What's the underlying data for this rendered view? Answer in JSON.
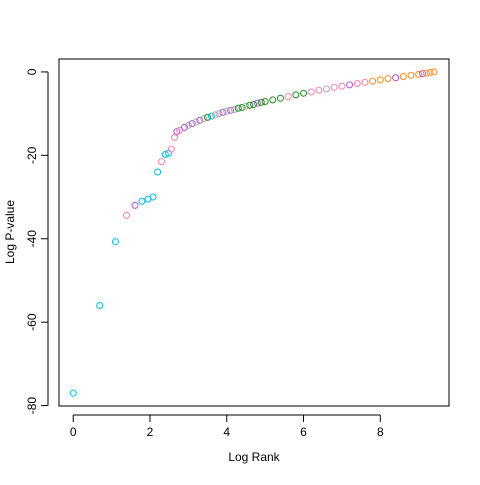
{
  "chart_data": {
    "type": "scatter",
    "x_label": "Log Rank",
    "y_label": "Log P-value",
    "xlim": [
      -0.37,
      9.79
    ],
    "ylim": [
      -80.1,
      3.1
    ],
    "xticks": [
      0,
      2,
      4,
      6,
      8
    ],
    "yticks": [
      0,
      -20,
      -40,
      -60,
      -80
    ],
    "series": [
      {
        "x": [
          0,
          0.69,
          1.1,
          1.39,
          1.61,
          1.79,
          1.95,
          2.08,
          2.2,
          2.3,
          2.4,
          2.48,
          2.56,
          2.64,
          2.7,
          2.77,
          2.9,
          3.0,
          3.1,
          3.2,
          3.3,
          3.4,
          3.5,
          3.6,
          3.7,
          3.8,
          3.9,
          4.0,
          4.1,
          4.2,
          4.3,
          4.4,
          4.5,
          4.6,
          4.7,
          4.8,
          4.9,
          5.0,
          5.2,
          5.4,
          5.6,
          5.8,
          6.0,
          6.2,
          6.4,
          6.6,
          6.8,
          7.0,
          7.2,
          7.4,
          7.6,
          7.8,
          8.0,
          8.2,
          8.4,
          8.6,
          8.8,
          9.0,
          9.1,
          9.2,
          9.3,
          9.4
        ],
        "values": [
          -77,
          -56,
          -40.7,
          -34.4,
          -32,
          -31,
          -30.5,
          -30,
          -24,
          -21.5,
          -19.8,
          -19.5,
          -18.5,
          -15.7,
          -14.3,
          -14,
          -13.3,
          -12.8,
          -12.4,
          -12.0,
          -11.6,
          -11.2,
          -10.9,
          -10.6,
          -10.3,
          -10.0,
          -9.7,
          -9.4,
          -9.2,
          -9.0,
          -8.7,
          -8.5,
          -8.2,
          -8.0,
          -7.8,
          -7.5,
          -7.3,
          -7.1,
          -6.7,
          -6.3,
          -5.9,
          -5.5,
          -5.1,
          -4.8,
          -4.4,
          -4.1,
          -3.7,
          -3.4,
          -3.1,
          -2.8,
          -2.5,
          -2.2,
          -1.9,
          -1.6,
          -1.4,
          -1.1,
          -0.8,
          -0.6,
          -0.4,
          -0.3,
          -0.1,
          0
        ],
        "colors": [
          "#00BFE0",
          "#00BFE0",
          "#00BFE0",
          "#FF7FAF",
          "#B050E0",
          "#00BFE0",
          "#00BFE0",
          "#00BFE0",
          "#00BFE0",
          "#FF7FAF",
          "#00BFE0",
          "#00BFE0",
          "#FF7FAF",
          "#FF7FAF",
          "#B050E0",
          "#FF7FAF",
          "#B050E0",
          "#AAAAAA",
          "#B050E0",
          "#AAAAAA",
          "#B050E0",
          "#AAAAAA",
          "#228B22",
          "#00BFE0",
          "#AAAAAA",
          "#AAAAAA",
          "#B050E0",
          "#AAAAAA",
          "#B050E0",
          "#AAAAAA",
          "#228B22",
          "#228B22",
          "#AAAAAA",
          "#228B22",
          "#228B22",
          "#B050E0",
          "#228B22",
          "#228B22",
          "#228B22",
          "#228B22",
          "#FF7FAF",
          "#228B22",
          "#228B22",
          "#FF7FAF",
          "#FF7FAF",
          "#AAAAAA",
          "#FF7FAF",
          "#FF7FAF",
          "#B050E0",
          "#FF7FAF",
          "#FF7FAF",
          "#FF8C1A",
          "#FF8C1A",
          "#FF8C1A",
          "#B050E0",
          "#FF8C1A",
          "#FF8C1A",
          "#FF8C1A",
          "#B050E0",
          "#FF8C1A",
          "#FF8C1A",
          "#FF8C1A"
        ]
      }
    ]
  }
}
